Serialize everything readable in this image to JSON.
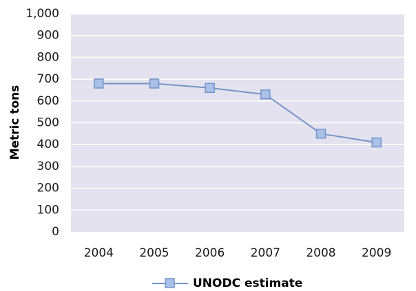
{
  "chart_data": {
    "type": "line",
    "title": "",
    "xlabel": "",
    "ylabel": "Metric tons",
    "categories": [
      "2004",
      "2005",
      "2006",
      "2007",
      "2008",
      "2009"
    ],
    "series": [
      {
        "name": "UNODC estimate",
        "values": [
          680,
          680,
          660,
          630,
          450,
          410
        ]
      }
    ],
    "ylim": [
      0,
      1000
    ],
    "y_ticks": [
      "0",
      "100",
      "200",
      "300",
      "400",
      "500",
      "600",
      "700",
      "800",
      "900",
      "1,000"
    ],
    "grid": true,
    "legend_position": "bottom",
    "colors": {
      "plot_background": "#e4e2ee",
      "gridline": "#ffffff",
      "series_line": "#7393c9",
      "marker_fill": "#a9c1e7",
      "marker_stroke": "#7393c9"
    }
  }
}
